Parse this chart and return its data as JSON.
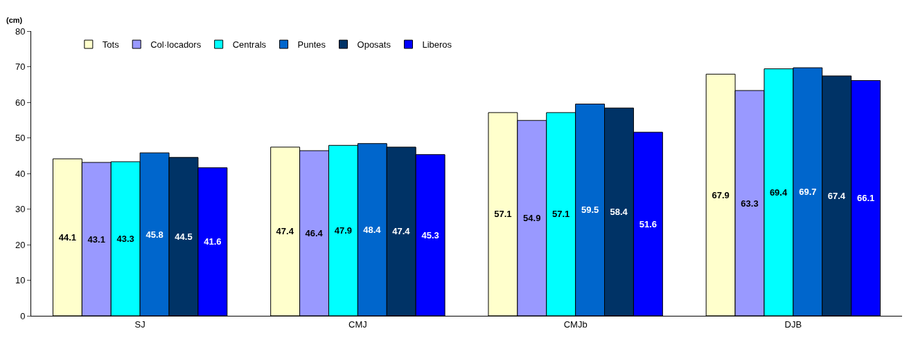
{
  "chart_data": {
    "type": "bar",
    "ylabel": "(cm)",
    "categories": [
      "SJ",
      "CMJ",
      "CMJb",
      "DJB"
    ],
    "series": [
      {
        "name": "Tots",
        "color": "#ffffcc",
        "values": [
          44.1,
          47.4,
          57.1,
          67.9
        ]
      },
      {
        "name": "Col·locadors",
        "color": "#9999ff",
        "values": [
          43.1,
          46.4,
          54.9,
          63.3
        ]
      },
      {
        "name": "Centrals",
        "color": "#00ffff",
        "values": [
          43.3,
          47.9,
          57.1,
          69.4
        ]
      },
      {
        "name": "Puntes",
        "color": "#0066cc",
        "values": [
          45.8,
          48.4,
          59.5,
          69.7
        ]
      },
      {
        "name": "Oposats",
        "color": "#003366",
        "values": [
          44.5,
          47.4,
          58.4,
          67.4
        ]
      },
      {
        "name": "Liberos",
        "color": "#0000ff",
        "values": [
          41.6,
          45.3,
          51.6,
          66.1
        ]
      }
    ],
    "ylim": [
      0,
      80
    ],
    "yticks": [
      0,
      10,
      20,
      30,
      40,
      50,
      60,
      70,
      80
    ],
    "legend": "top",
    "data_labels": true
  }
}
